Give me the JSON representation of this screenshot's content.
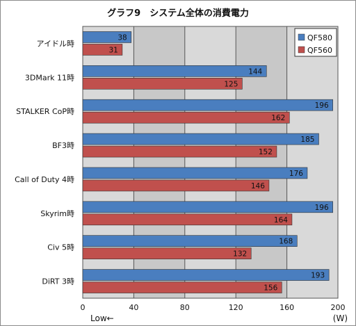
{
  "chart_data": {
    "type": "bar",
    "orientation": "horizontal",
    "title": "グラフ9　システム全体の消費電力",
    "categories": [
      "アイドル時",
      "3DMark 11時",
      "STALKER CoP時",
      "BF3時",
      "Call of Duty 4時",
      "Skyrim時",
      "Civ 5時",
      "DiRT 3時"
    ],
    "series": [
      {
        "name": "QF580",
        "color": "#4a7ebf",
        "values": [
          38,
          144,
          196,
          185,
          176,
          196,
          168,
          193
        ]
      },
      {
        "name": "QF560",
        "color": "#c0504d",
        "values": [
          31,
          125,
          162,
          152,
          146,
          164,
          132,
          156
        ]
      }
    ],
    "xlim": [
      0,
      200
    ],
    "xticks": [
      0,
      40,
      80,
      120,
      160,
      200
    ],
    "xlabel_left": "Low←",
    "xunit": "(W)",
    "legend_position": "top-right",
    "grid": true,
    "plot_background": [
      "#d9d9d9",
      "#c8c8c8"
    ]
  }
}
